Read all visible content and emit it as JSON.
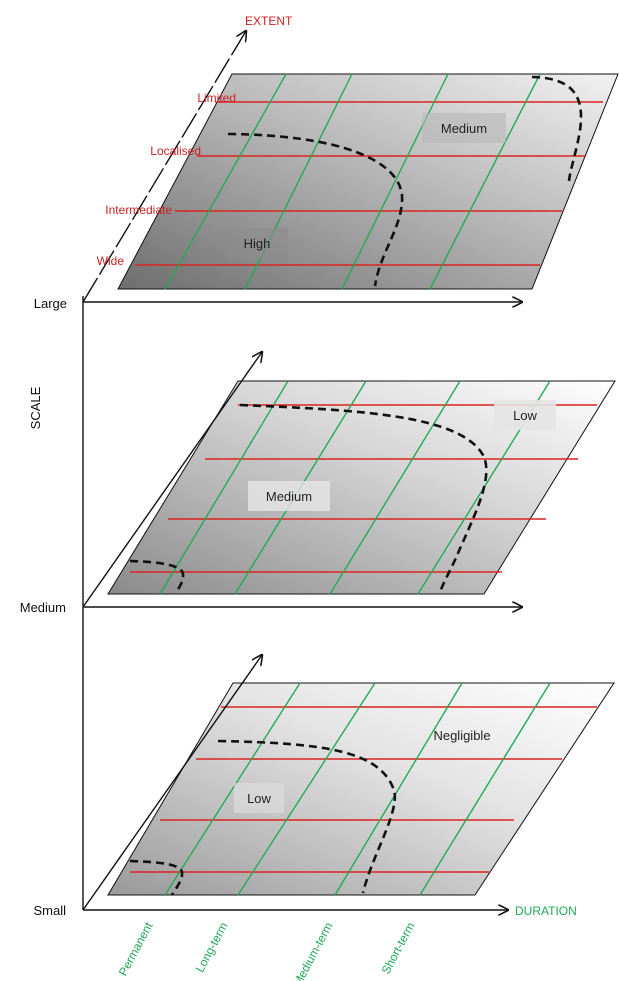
{
  "extent_title": "EXTENT",
  "scale_title": "SCALE",
  "duration_title": "DURATION",
  "extent_levels": [
    "Limited",
    "Localised",
    "Intermediate",
    "Wide"
  ],
  "scale_levels": [
    "Large",
    "Medium",
    "Small"
  ],
  "duration_levels": [
    "Permanent",
    "Long-term",
    "Medium-term",
    "Short-term"
  ],
  "panels": {
    "large": {
      "zone_inner": "High",
      "zone_outer": "Medium"
    },
    "medium": {
      "zone_inner": "Medium",
      "zone_outer": "Low"
    },
    "small": {
      "zone_inner": "Low",
      "zone_outer": "Negligible"
    }
  },
  "colors": {
    "extent": "#cc2222",
    "duration": "#22aa55",
    "boundary": "#111111",
    "panel_dark": "#7a7a7a",
    "panel_light": "#ffffff"
  }
}
